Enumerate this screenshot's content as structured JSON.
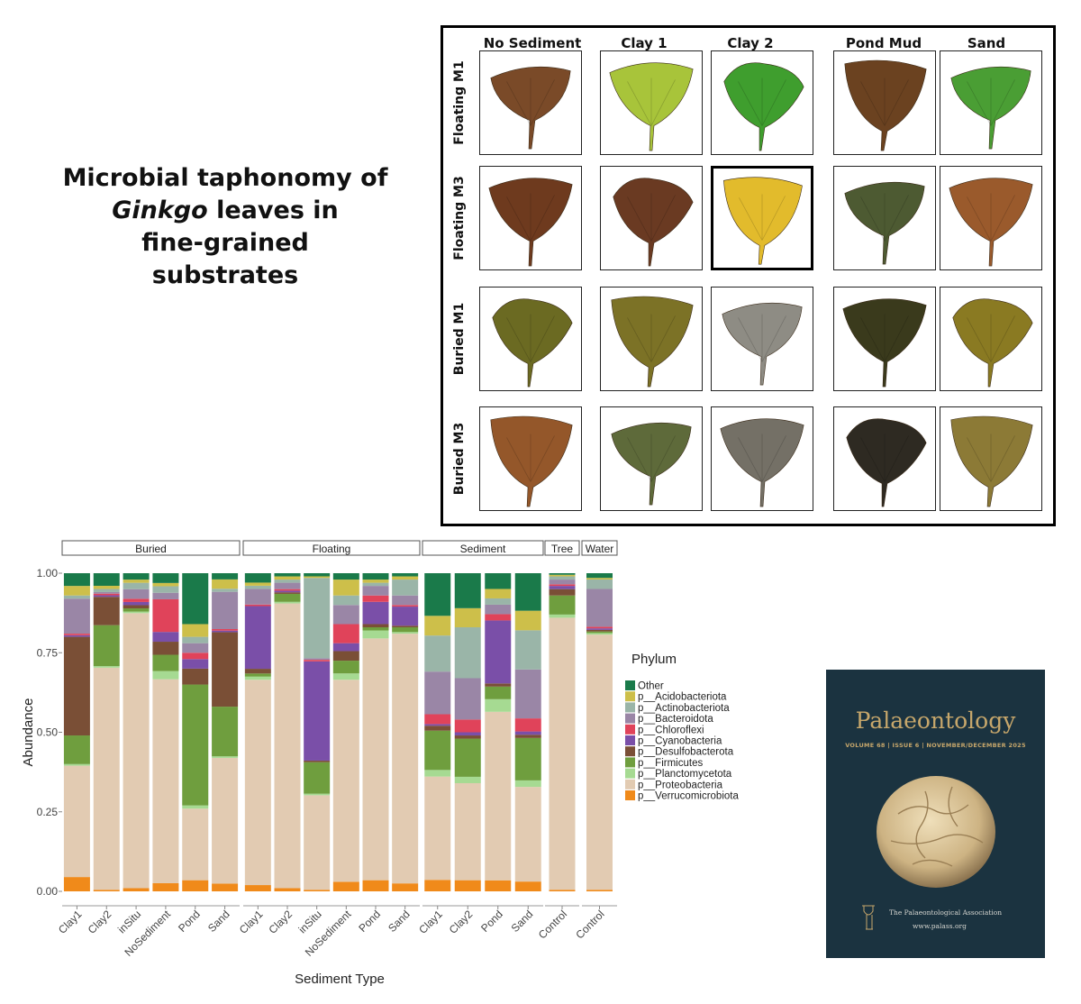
{
  "title": {
    "line1": "Microbial taphonomy of",
    "line2_italic": "Ginkgo",
    "line2_rest": " leaves in",
    "line3": "fine-grained",
    "line4": "substrates"
  },
  "leaf_panel": {
    "columns": [
      "No Sediment",
      "Clay 1",
      "Clay 2",
      "Pond Mud",
      "Sand"
    ],
    "rows": [
      "Floating M1",
      "Floating M3",
      "Buried M1",
      "Buried M3"
    ],
    "leaf_colors": [
      [
        "#7a4a28",
        "#a8c43a",
        "#3f9e2e",
        "#6b4220",
        "#4a9e34"
      ],
      [
        "#6e3a1e",
        "#6a3a22",
        "#e2bb2c",
        "#4d5a32",
        "#9a5a2c"
      ],
      [
        "#6b6a22",
        "#7c7226",
        "#8e8c84",
        "#3a3a1c",
        "#8a7a22"
      ],
      [
        "#94572a",
        "#5e6a3a",
        "#747066",
        "#2e2a22",
        "#8c7a36"
      ]
    ]
  },
  "chart_data": {
    "type": "bar",
    "stacked": true,
    "ylabel": "Abundance",
    "xlabel": "Sediment Type",
    "ylim": [
      0,
      1
    ],
    "yticks": [
      "0.00",
      "0.25",
      "0.50",
      "0.75",
      "1.00"
    ],
    "legend_title": "Phylum",
    "phyla": [
      "Other",
      "p__Acidobacteriota",
      "p__Actinobacteriota",
      "p__Bacteroidota",
      "p__Chloroflexi",
      "p__Cyanobacteria",
      "p__Desulfobacterota",
      "p__Firmicutes",
      "p__Planctomycetota",
      "p__Proteobacteria",
      "p__Verrucomicrobiota"
    ],
    "colors": [
      "#1a7a4a",
      "#cdbf4a",
      "#9ab5a8",
      "#9a86a6",
      "#e0435a",
      "#7a4fa8",
      "#7a4f36",
      "#6f9e3e",
      "#a6da92",
      "#e2cbb2",
      "#f08a1a"
    ],
    "facets": [
      {
        "name": "Buried",
        "bars": [
          {
            "label": "Clay1",
            "values": [
              0.04,
              0.03,
              0.01,
              0.11,
              0.005,
              0.005,
              0.31,
              0.09,
              0.005,
              0.35,
              0.045
            ]
          },
          {
            "label": "Clay2",
            "values": [
              0.04,
              0.01,
              0.01,
              0.005,
              0.005,
              0.005,
              0.09,
              0.13,
              0.005,
              0.705,
              0.005
            ]
          },
          {
            "label": "inSitu",
            "values": [
              0.02,
              0.01,
              0.02,
              0.03,
              0.01,
              0.01,
              0.01,
              0.01,
              0.005,
              0.86,
              0.01
            ]
          },
          {
            "label": "NoSediment",
            "values": [
              0.03,
              0.01,
              0.02,
              0.02,
              0.1,
              0.03,
              0.04,
              0.05,
              0.025,
              0.625,
              0.025
            ]
          },
          {
            "label": "Pond",
            "values": [
              0.16,
              0.04,
              0.02,
              0.03,
              0.02,
              0.03,
              0.05,
              0.38,
              0.01,
              0.225,
              0.035
            ]
          },
          {
            "label": "Sand",
            "values": [
              0.02,
              0.03,
              0.01,
              0.12,
              0.005,
              0.005,
              0.24,
              0.16,
              0.005,
              0.405,
              0.025
            ]
          }
        ]
      },
      {
        "name": "Floating",
        "bars": [
          {
            "label": "Clay1",
            "values": [
              0.03,
              0.01,
              0.01,
              0.05,
              0.005,
              0.2,
              0.015,
              0.01,
              0.01,
              0.655,
              0.02
            ]
          },
          {
            "label": "Clay2",
            "values": [
              0.01,
              0.01,
              0.01,
              0.02,
              0.005,
              0.005,
              0.005,
              0.025,
              0.005,
              0.895,
              0.01
            ]
          },
          {
            "label": "inSitu",
            "values": [
              0.01,
              0.005,
              0.255,
              0.005,
              0.005,
              0.315,
              0.005,
              0.1,
              0.005,
              0.3,
              0.005
            ]
          },
          {
            "label": "NoSediment",
            "values": [
              0.02,
              0.05,
              0.03,
              0.06,
              0.06,
              0.025,
              0.03,
              0.04,
              0.02,
              0.635,
              0.03
            ]
          },
          {
            "label": "Pond",
            "values": [
              0.02,
              0.01,
              0.01,
              0.03,
              0.02,
              0.07,
              0.01,
              0.01,
              0.025,
              0.76,
              0.035
            ]
          },
          {
            "label": "Sand",
            "values": [
              0.01,
              0.01,
              0.05,
              0.03,
              0.005,
              0.06,
              0.005,
              0.015,
              0.005,
              0.785,
              0.025
            ]
          }
        ]
      },
      {
        "name": "Sediment",
        "bars": [
          {
            "label": "Clay1",
            "values": [
              0.13,
              0.06,
              0.11,
              0.13,
              0.03,
              0.005,
              0.015,
              0.12,
              0.02,
              0.315,
              0.035
            ]
          },
          {
            "label": "Clay2",
            "values": [
              0.11,
              0.06,
              0.16,
              0.13,
              0.04,
              0.01,
              0.01,
              0.12,
              0.02,
              0.305,
              0.035
            ]
          },
          {
            "label": "Pond",
            "values": [
              0.05,
              0.03,
              0.02,
              0.03,
              0.02,
              0.2,
              0.01,
              0.04,
              0.04,
              0.535,
              0.035
            ]
          },
          {
            "label": "Sand",
            "values": [
              0.115,
              0.06,
              0.12,
              0.15,
              0.04,
              0.01,
              0.01,
              0.13,
              0.02,
              0.29,
              0.03
            ]
          }
        ]
      },
      {
        "name": "Tree",
        "bars": [
          {
            "label": "Control",
            "values": [
              0.005,
              0.005,
              0.01,
              0.015,
              0.005,
              0.01,
              0.02,
              0.06,
              0.01,
              0.855,
              0.005
            ]
          }
        ]
      },
      {
        "name": "Water",
        "bars": [
          {
            "label": "Control",
            "values": [
              0.015,
              0.005,
              0.03,
              0.12,
              0.005,
              0.005,
              0.005,
              0.005,
              0.005,
              0.81,
              0.005
            ]
          }
        ]
      }
    ]
  },
  "journal": {
    "title": "Palaeontology",
    "issue_line": "VOLUME 68 | ISSUE 6 | NOVEMBER/DECEMBER 2025",
    "association": "The Palaeontological Association",
    "url": "www.palass.org"
  }
}
